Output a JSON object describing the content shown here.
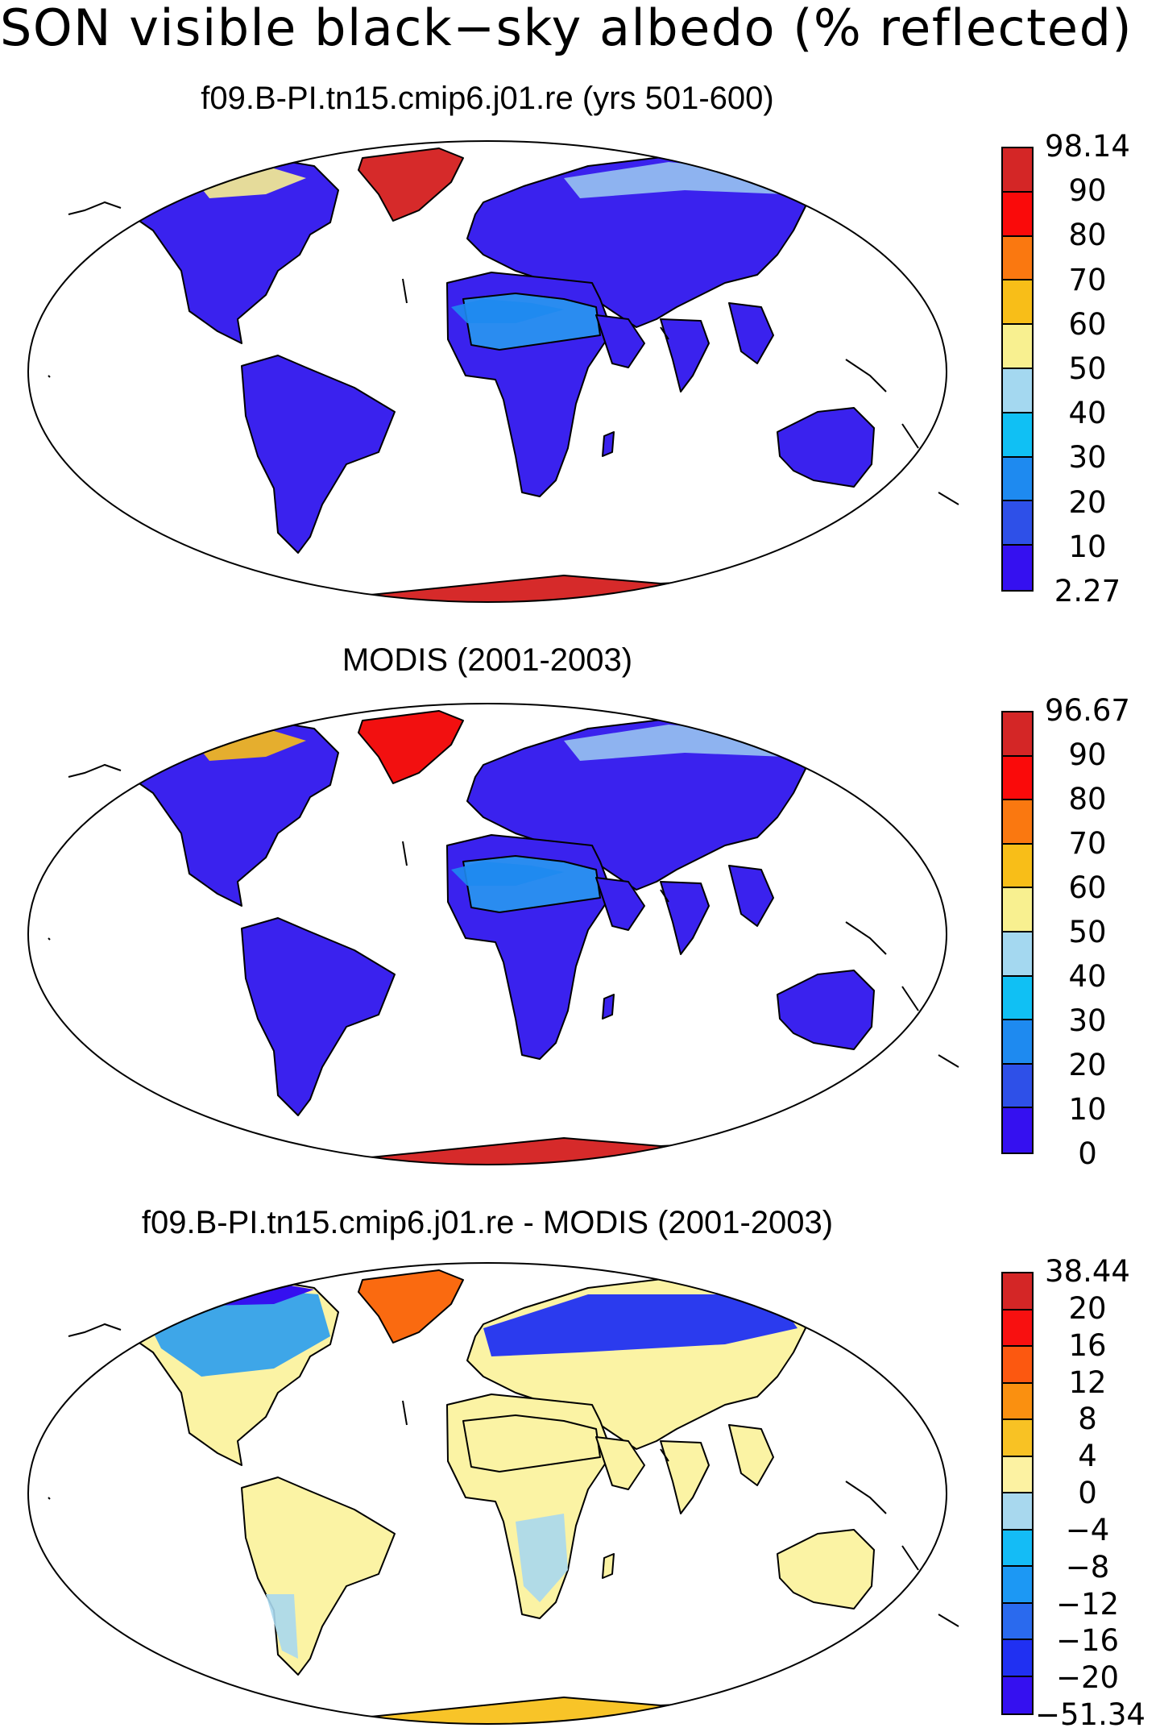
{
  "title": "SON visible black−sky albedo (% reflected)",
  "colors": {
    "absolute_scale": [
      "#3510f0",
      "#2e50e8",
      "#1e8af0",
      "#10c0f4",
      "#a4d8f0",
      "#f8f090",
      "#f8be18",
      "#fa7810",
      "#fa0a0a",
      "#d42626"
    ],
    "difference_scale": [
      "#3510f0",
      "#2030f2",
      "#2a6aee",
      "#1c98f4",
      "#14bcf6",
      "#a8d8ee",
      "#fcf2a2",
      "#f8c224",
      "#fa9010",
      "#fc5810",
      "#f81010",
      "#d42626"
    ]
  },
  "panels": [
    {
      "title": "f09.B-PI.tn15.cmip6.j01.re (yrs 501-600)",
      "colorbar_labels": [
        "98.14",
        "90",
        "80",
        "70",
        "60",
        "50",
        "40",
        "30",
        "20",
        "10",
        "2.27"
      ],
      "land_fill": "#3a22ee",
      "greenland_fill": "#d62a2a",
      "antarctica_fill": "#d62a2a",
      "sahara_fill": "#2a8cf0"
    },
    {
      "title": "MODIS (2001-2003)",
      "colorbar_labels": [
        "96.67",
        "90",
        "80",
        "70",
        "60",
        "50",
        "40",
        "30",
        "20",
        "10",
        "0"
      ],
      "land_fill": "#3a22ee",
      "greenland_fill": "#f21010",
      "antarctica_fill": "#d62a2a",
      "sahara_fill": "#2a8cf0"
    },
    {
      "title": "f09.B-PI.tn15.cmip6.j01.re - MODIS (2001-2003)",
      "colorbar_labels": [
        "38.44",
        "20",
        "16",
        "12",
        "8",
        "4",
        "0",
        "−4",
        "−8",
        "−12",
        "−16",
        "−20",
        "−51.34"
      ],
      "land_fill": "#fbf3a4",
      "greenland_fill": "#fa6a10",
      "antarctica_fill": "#f8c428",
      "sahara_fill": "#fbf3a4"
    }
  ]
}
